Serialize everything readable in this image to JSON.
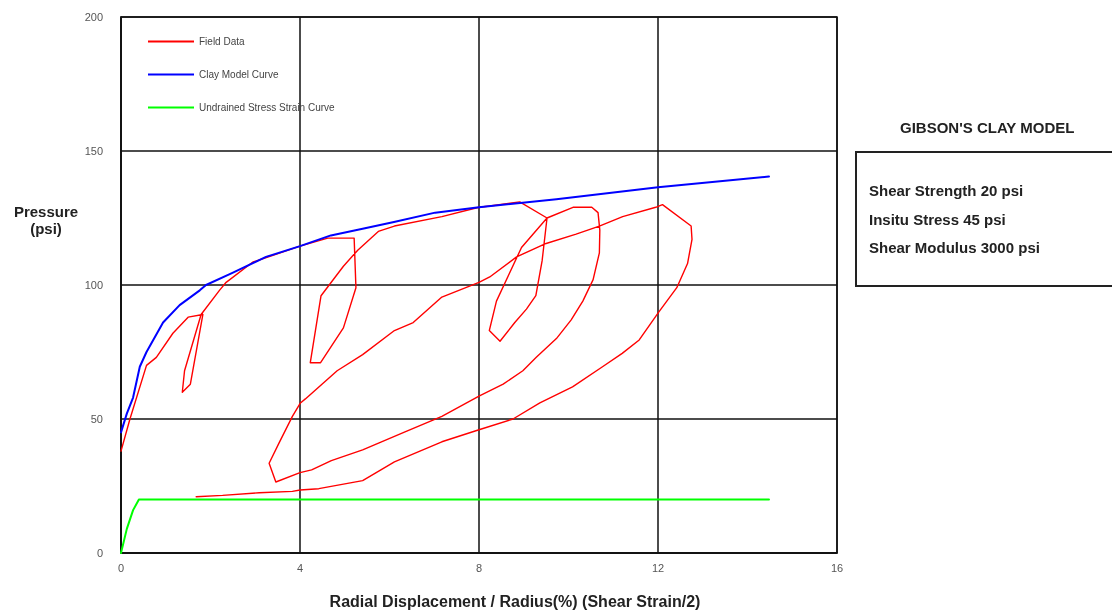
{
  "chart_data": {
    "type": "line",
    "xlabel": "Radial Displacement / Radius(%) (Shear Strain/2)",
    "ylabel": "Pressure (psi)",
    "xlim": [
      0,
      16
    ],
    "xticks": [
      0,
      4,
      8,
      12,
      16
    ],
    "ylim": [
      0,
      200
    ],
    "yticks": [
      0,
      50,
      100,
      150,
      200
    ],
    "grid": true,
    "legend": "top left",
    "marker": "none",
    "line_style": "solid",
    "annotations": [
      "GIBSON'S CLAY MODEL",
      "Shear Strength 20 psi",
      "Insitu Stress 45 psi",
      "Shear Modulus 3000 psi"
    ],
    "series": [
      {
        "name": "Field Data",
        "color": "#ff0000",
        "x": [
          0,
          0.2,
          0.57,
          0.79,
          1.16,
          1.5,
          1.83,
          1.55,
          1.37,
          1.42,
          1.79,
          2.2,
          2.35,
          2.94,
          4,
          4.62,
          5.21,
          5.25,
          4.97,
          4.46,
          4.23,
          4.47,
          4.97,
          5.29,
          5.75,
          6.11,
          7.17,
          8,
          8.24,
          8.91,
          9.52,
          8.95,
          8.39,
          8.23,
          8.47,
          8.8,
          9.06,
          9.27,
          9.41,
          9.52,
          10.1,
          10.52,
          10.66,
          10.7,
          10.69,
          10.55,
          10.32,
          10.06,
          9.73,
          9.28,
          8.98,
          8.54,
          8,
          7.17,
          6.32,
          5.4,
          4.7,
          4.26,
          4,
          3.46,
          3.31,
          3.53,
          3.83,
          4.01,
          4.12,
          4.83,
          5.4,
          6.11,
          6.53,
          7.17,
          8,
          8.24,
          8.84,
          9.5,
          10.17,
          10.69,
          11.21,
          11.95,
          12.1,
          12.74,
          12.76,
          12.66,
          12.42,
          12.02,
          11.58,
          11.2,
          10.76,
          10.09,
          9.36,
          8.76,
          8,
          7.17,
          6.11,
          5.4,
          4.42,
          4,
          3.83,
          3.09,
          2.27,
          1.68
        ],
        "values": [
          38,
          50,
          70,
          73,
          82,
          88,
          89,
          63,
          60,
          68,
          89,
          98,
          101,
          108.5,
          114.5,
          117.5,
          117.5,
          99,
          84,
          71,
          71,
          96,
          107,
          113,
          120,
          122,
          125.5,
          129,
          129.5,
          131,
          125,
          114,
          94,
          83,
          79,
          86,
          91,
          96,
          109,
          125,
          129,
          129,
          127,
          120.5,
          112,
          102,
          94,
          87,
          80,
          73,
          68,
          63,
          58.5,
          51,
          45,
          38.5,
          34.5,
          31,
          30,
          26.5,
          33.5,
          41,
          51,
          56,
          57.5,
          68,
          74,
          83,
          86,
          95.5,
          101,
          103,
          110.5,
          115.5,
          119,
          122,
          125.5,
          129,
          130,
          122,
          117,
          108,
          99,
          90,
          79.5,
          74.5,
          69.5,
          62,
          56,
          50,
          46,
          41.5,
          34,
          27,
          24,
          23.5,
          23,
          22.5,
          21.5,
          21
        ]
      },
      {
        "name": "Clay Model Curve",
        "color": "#0000ff",
        "x": [
          0,
          0.13,
          0.27,
          0.42,
          0.57,
          0.94,
          1.31,
          1.76,
          1.9,
          2.49,
          3.24,
          4,
          4.69,
          5.4,
          6.1,
          7.02,
          8,
          9.73,
          12,
          14.48
        ],
        "values": [
          45,
          52,
          58,
          69.5,
          75,
          86,
          92.5,
          98,
          100,
          104.5,
          110.5,
          114.5,
          118.5,
          121,
          123.5,
          127,
          129,
          132,
          136.5,
          140.5
        ]
      },
      {
        "name": "Undrained Stress Strain Curve",
        "color": "#00ff00",
        "x": [
          0,
          0.13,
          0.27,
          0.4,
          14.48
        ],
        "values": [
          0,
          9,
          16,
          20,
          20
        ]
      }
    ]
  }
}
